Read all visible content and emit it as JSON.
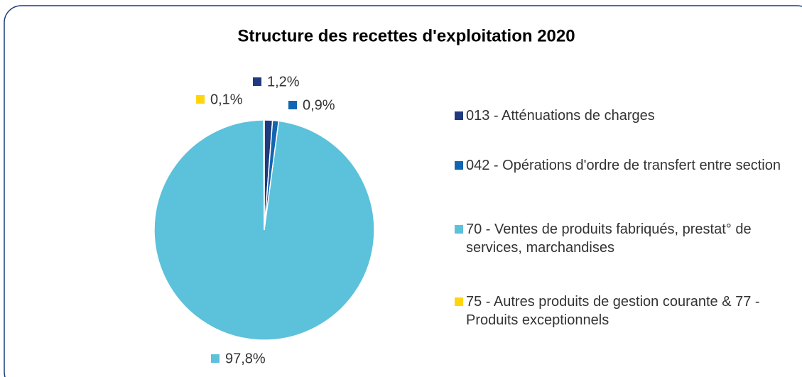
{
  "chart_data": {
    "type": "pie",
    "title": "Structure des recettes d'exploitation 2020",
    "categories": [
      "013 - Atténuations de charges",
      "042 - Opérations d'ordre de transfert entre section",
      "70 - Ventes de produits fabriqués, prestat° de services, marchandises",
      "75 - Autres produits de gestion courante & 77 - Produits exceptionnels"
    ],
    "values": [
      1.2,
      0.9,
      97.8,
      0.1
    ],
    "value_labels": [
      "1,2%",
      "0,9%",
      "97,8%",
      "0,1%"
    ],
    "colors": [
      "#1f3a7d",
      "#1266b1",
      "#5cc1da",
      "#ffd50f"
    ],
    "legend": "right"
  }
}
